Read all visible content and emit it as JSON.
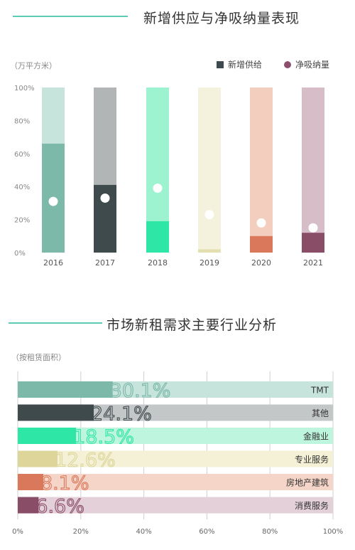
{
  "colors": {
    "accent_line": "#5ccdb4",
    "supply": "#3d4a4f",
    "absorption": "#8b5070"
  },
  "chart1": {
    "title": "新增供应与净吸纳量表现",
    "unit": "（万平方米）",
    "legend": {
      "supply": "新增供给",
      "absorption": "净吸纳量"
    }
  },
  "chart2": {
    "title": "市场新租需求主要行业分析",
    "unit": "（按租赁面积）"
  },
  "chart_data": [
    {
      "type": "bar",
      "title": "新增供应与净吸纳量表现",
      "ylabel": "（万平方米）",
      "ylim": [
        0,
        100
      ],
      "yticks": [
        "0%",
        "20%",
        "40%",
        "60%",
        "80%",
        "100%"
      ],
      "categories": [
        "2016",
        "2017",
        "2018",
        "2019",
        "2020",
        "2021"
      ],
      "series": [
        {
          "name": "新增供给",
          "type": "bar",
          "values": [
            66,
            41,
            19,
            2,
            10,
            12
          ]
        },
        {
          "name": "净吸纳量",
          "type": "scatter",
          "values": [
            31,
            33,
            39,
            23,
            18,
            15
          ]
        }
      ],
      "bar_colors": [
        "#7cb9a8",
        "#3f4a4d",
        "#2ee6a5",
        "#e4dfb1",
        "#d9785a",
        "#8a4d68"
      ],
      "bar_bg_colors": [
        "#c6e3dc",
        "#b1b5b6",
        "#9df2d0",
        "#f4f1dc",
        "#f3cdbd",
        "#d7bdc8"
      ],
      "legend_position": "top-right",
      "grid": false
    },
    {
      "type": "bar",
      "orientation": "horizontal",
      "title": "市场新租需求主要行业分析",
      "subtitle": "（按租赁面积）",
      "xlim": [
        0,
        100
      ],
      "xticks": [
        "0%",
        "20%",
        "40%",
        "60%",
        "80%",
        "100%"
      ],
      "categories": [
        "TMT",
        "其他",
        "金融业",
        "专业服务",
        "房地产建筑",
        "消费服务"
      ],
      "values": [
        30.1,
        24.1,
        18.5,
        12.6,
        8.1,
        6.6
      ],
      "value_labels": [
        "30.1%",
        "24.1%",
        "18.5%",
        "12.6%",
        "8.1%",
        "6.6%"
      ],
      "bar_colors": [
        "#7cb9a8",
        "#3f4a4d",
        "#2ee6a5",
        "#ddd59a",
        "#d9785a",
        "#8a4d68"
      ],
      "bar_bg_colors": [
        "#c6e3dc",
        "#c4c7c8",
        "#bdf5df",
        "#f4f1d6",
        "#f5d5c8",
        "#e3d0d8"
      ],
      "grid": true
    }
  ]
}
